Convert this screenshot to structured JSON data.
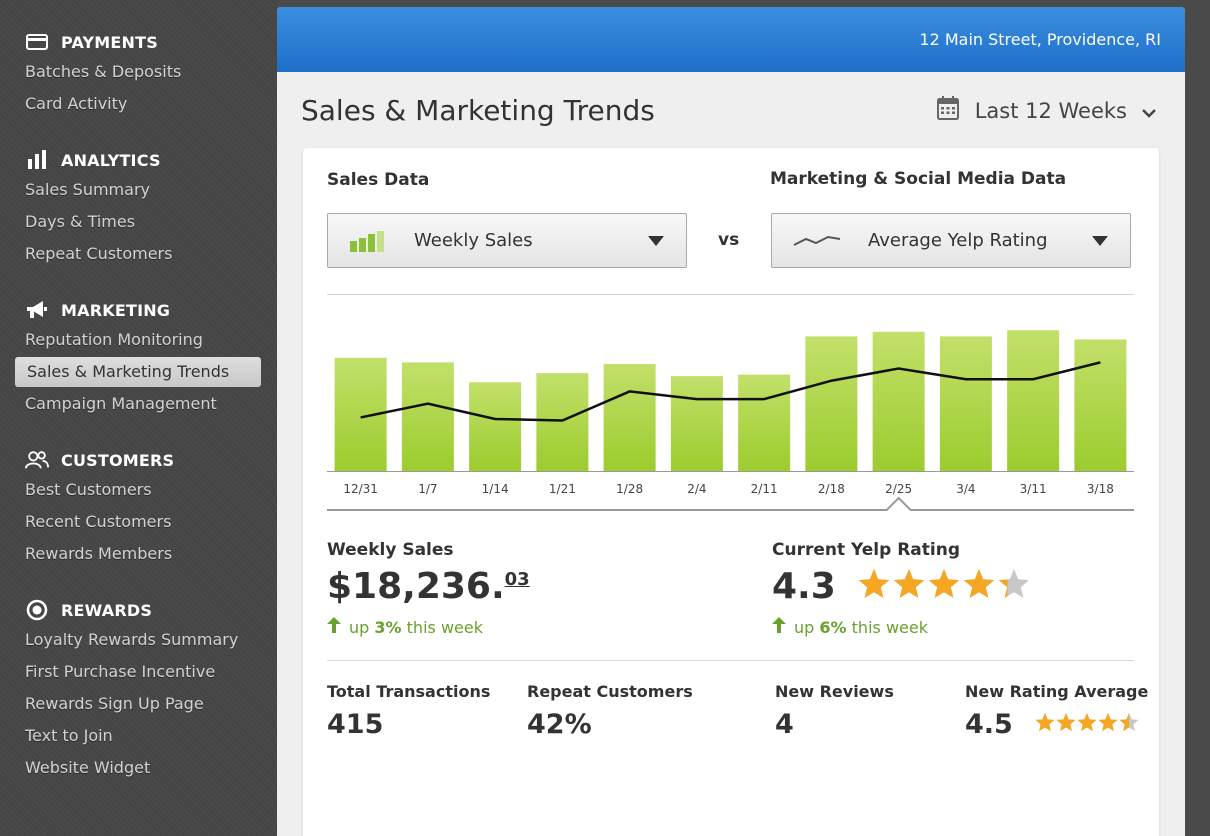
{
  "sidebar": {
    "sections": [
      {
        "title": "PAYMENTS",
        "icon": "credit-card-icon",
        "items": [
          "Batches & Deposits",
          "Card Activity"
        ]
      },
      {
        "title": "ANALYTICS",
        "icon": "bar-chart-icon",
        "items": [
          "Sales Summary",
          "Days & Times",
          "Repeat Customers"
        ]
      },
      {
        "title": "MARKETING",
        "icon": "megaphone-icon",
        "items": [
          "Reputation Monitoring",
          "Sales & Marketing Trends",
          "Campaign Management"
        ]
      },
      {
        "title": "CUSTOMERS",
        "icon": "users-icon",
        "items": [
          "Best Customers",
          "Recent Customers",
          "Rewards Members"
        ]
      },
      {
        "title": "REWARDS",
        "icon": "target-icon",
        "items": [
          "Loyalty Rewards Summary",
          "First Purchase Incentive",
          "Rewards Sign Up Page",
          "Text to Join",
          "Website Widget"
        ]
      }
    ],
    "active_item": "Sales & Marketing Trends"
  },
  "header": {
    "address": "12 Main Street, Providence, RI"
  },
  "page": {
    "title": "Sales & Marketing Trends",
    "range_label": "Last 12 Weeks"
  },
  "card": {
    "sales_label": "Sales Data",
    "marketing_label": "Marketing & Social Media Data",
    "sales_select": "Weekly Sales",
    "vs_label": "vs",
    "marketing_select": "Average Yelp Rating"
  },
  "chart_data": {
    "type": "bar",
    "categories": [
      "12/31",
      "1/7",
      "1/14",
      "1/21",
      "1/28",
      "2/4",
      "2/11",
      "2/18",
      "2/25",
      "3/4",
      "3/11",
      "3/18"
    ],
    "series": [
      {
        "values": [
          0.74,
          0.71,
          0.58,
          0.64,
          0.7,
          0.62,
          0.63,
          0.88,
          0.91,
          0.88,
          0.92,
          0.86
        ]
      },
      {
        "values": [
          0.35,
          0.44,
          0.34,
          0.33,
          0.52,
          0.47,
          0.47,
          0.59,
          0.67,
          0.6,
          0.6,
          0.71
        ]
      }
    ],
    "selected_category": "2/25",
    "colors": {
      "bar": "#a6d03c",
      "line": "#111111"
    }
  },
  "stats": {
    "weekly_sales": {
      "label": "Weekly Sales",
      "value_main": "$18,236.",
      "value_cents": "03",
      "trend_prefix": "up",
      "trend_value": "3%",
      "trend_suffix": "this week"
    },
    "yelp": {
      "label": "Current Yelp Rating",
      "value": "4.3",
      "rating": 4.3,
      "trend_prefix": "up",
      "trend_value": "6%",
      "trend_suffix": "this week"
    },
    "total_transactions": {
      "label": "Total Transactions",
      "value": "415"
    },
    "repeat_customers": {
      "label": "Repeat Customers",
      "value": "42%"
    },
    "new_reviews": {
      "label": "New Reviews",
      "value": "4"
    },
    "new_rating_avg": {
      "label": "New Rating Average",
      "value": "4.5",
      "rating": 4.5
    }
  },
  "colors": {
    "accent_blue": "#1f6ec8",
    "green": "#6aa02c",
    "star": "#f5a623",
    "star_empty": "#c8c8c8"
  }
}
